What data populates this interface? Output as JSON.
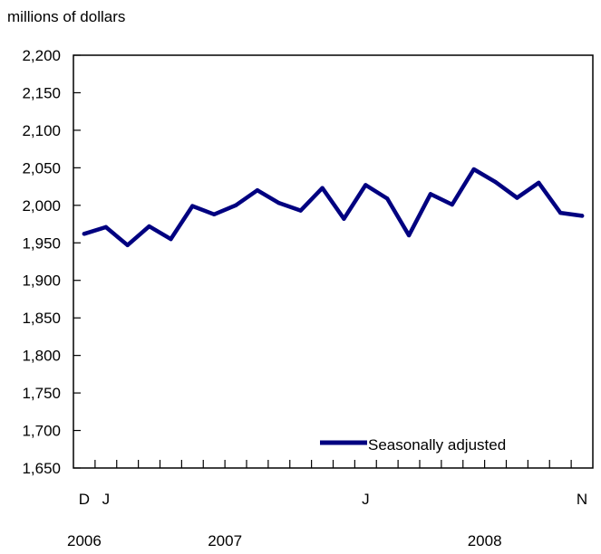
{
  "chart_data": {
    "type": "line",
    "ylabel": "millions of dollars",
    "ylim": [
      1650,
      2200
    ],
    "yticks": [
      1650,
      1700,
      1750,
      1800,
      1850,
      1900,
      1950,
      2000,
      2050,
      2100,
      2150,
      2200
    ],
    "ytick_labels": [
      "1,650",
      "1,700",
      "1,750",
      "1,800",
      "1,850",
      "1,900",
      "1,950",
      "2,000",
      "2,050",
      "2,100",
      "2,150",
      "2,200"
    ],
    "x": [
      "Dec 2006",
      "Jan 2007",
      "Feb 2007",
      "Mar 2007",
      "Apr 2007",
      "May 2007",
      "Jun 2007",
      "Jul 2007",
      "Aug 2007",
      "Sep 2007",
      "Oct 2007",
      "Nov 2007",
      "Dec 2007",
      "Jan 2008",
      "Feb 2008",
      "Mar 2008",
      "Apr 2008",
      "May 2008",
      "Jun 2008",
      "Jul 2008",
      "Aug 2008",
      "Sep 2008",
      "Oct 2008",
      "Nov 2008"
    ],
    "x_month_labels": [
      {
        "index": 0,
        "text": "D"
      },
      {
        "index": 1,
        "text": "J"
      },
      {
        "index": 13,
        "text": "J"
      },
      {
        "index": 23,
        "text": "N"
      }
    ],
    "x_year_labels": [
      {
        "index": 0,
        "text": "2006"
      },
      {
        "index": 6.5,
        "text": "2007"
      },
      {
        "index": 18.5,
        "text": "2008"
      }
    ],
    "series": [
      {
        "name": "Seasonally adjusted",
        "color": "#000080",
        "values": [
          1962,
          1971,
          1947,
          1972,
          1955,
          1999,
          1988,
          2000,
          2020,
          2003,
          1993,
          2023,
          1982,
          2027,
          2009,
          1960,
          2015,
          2001,
          2048,
          2031,
          2010,
          2030,
          1990,
          1986
        ]
      }
    ],
    "legend": "bottom-right",
    "grid": false
  }
}
